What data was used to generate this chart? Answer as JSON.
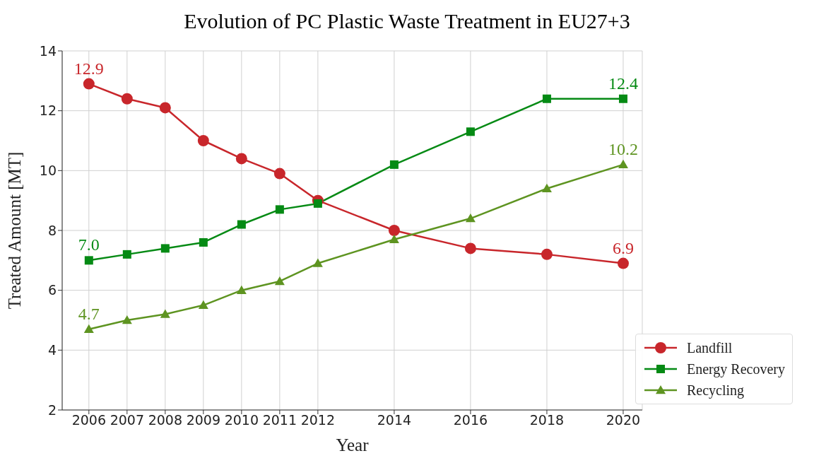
{
  "chart_data": {
    "type": "line",
    "title": "Evolution of PC Plastic Waste Treatment in EU27+3",
    "xlabel": "Year",
    "ylabel": "Treated Amount [MT]",
    "x": [
      2006,
      2007,
      2008,
      2009,
      2010,
      2011,
      2012,
      2014,
      2016,
      2018,
      2020
    ],
    "series": [
      {
        "name": "Landfill",
        "color": "#c8262b",
        "marker": "circle",
        "values": [
          12.9,
          12.4,
          12.1,
          11.0,
          10.4,
          9.9,
          9.0,
          8.0,
          7.4,
          7.2,
          6.9
        ],
        "value_labels": [
          "12.9",
          null,
          null,
          null,
          null,
          null,
          null,
          null,
          null,
          null,
          "6.9"
        ]
      },
      {
        "name": "Energy Recovery",
        "color": "#058a14",
        "marker": "square",
        "values": [
          7.0,
          7.2,
          7.4,
          7.6,
          8.2,
          8.7,
          8.9,
          10.2,
          11.3,
          12.4,
          12.4
        ],
        "value_labels": [
          "7.0",
          null,
          null,
          null,
          null,
          null,
          null,
          null,
          null,
          null,
          "12.4"
        ]
      },
      {
        "name": "Recycling",
        "color": "#5e9421",
        "marker": "triangle",
        "values": [
          4.7,
          5.0,
          5.2,
          5.5,
          6.0,
          6.3,
          6.9,
          7.7,
          8.4,
          9.4,
          10.2
        ],
        "value_labels": [
          "4.7",
          null,
          null,
          null,
          null,
          null,
          null,
          null,
          null,
          null,
          "10.2"
        ]
      }
    ],
    "xlim": [
      2005.3,
      2020.5
    ],
    "xticks": [
      2006,
      2007,
      2008,
      2009,
      2010,
      2011,
      2012,
      2014,
      2016,
      2018,
      2020
    ],
    "ylim": [
      2,
      14
    ],
    "yticks": [
      2,
      4,
      6,
      8,
      10,
      12,
      14
    ],
    "grid": true,
    "legend": "bottom right"
  }
}
